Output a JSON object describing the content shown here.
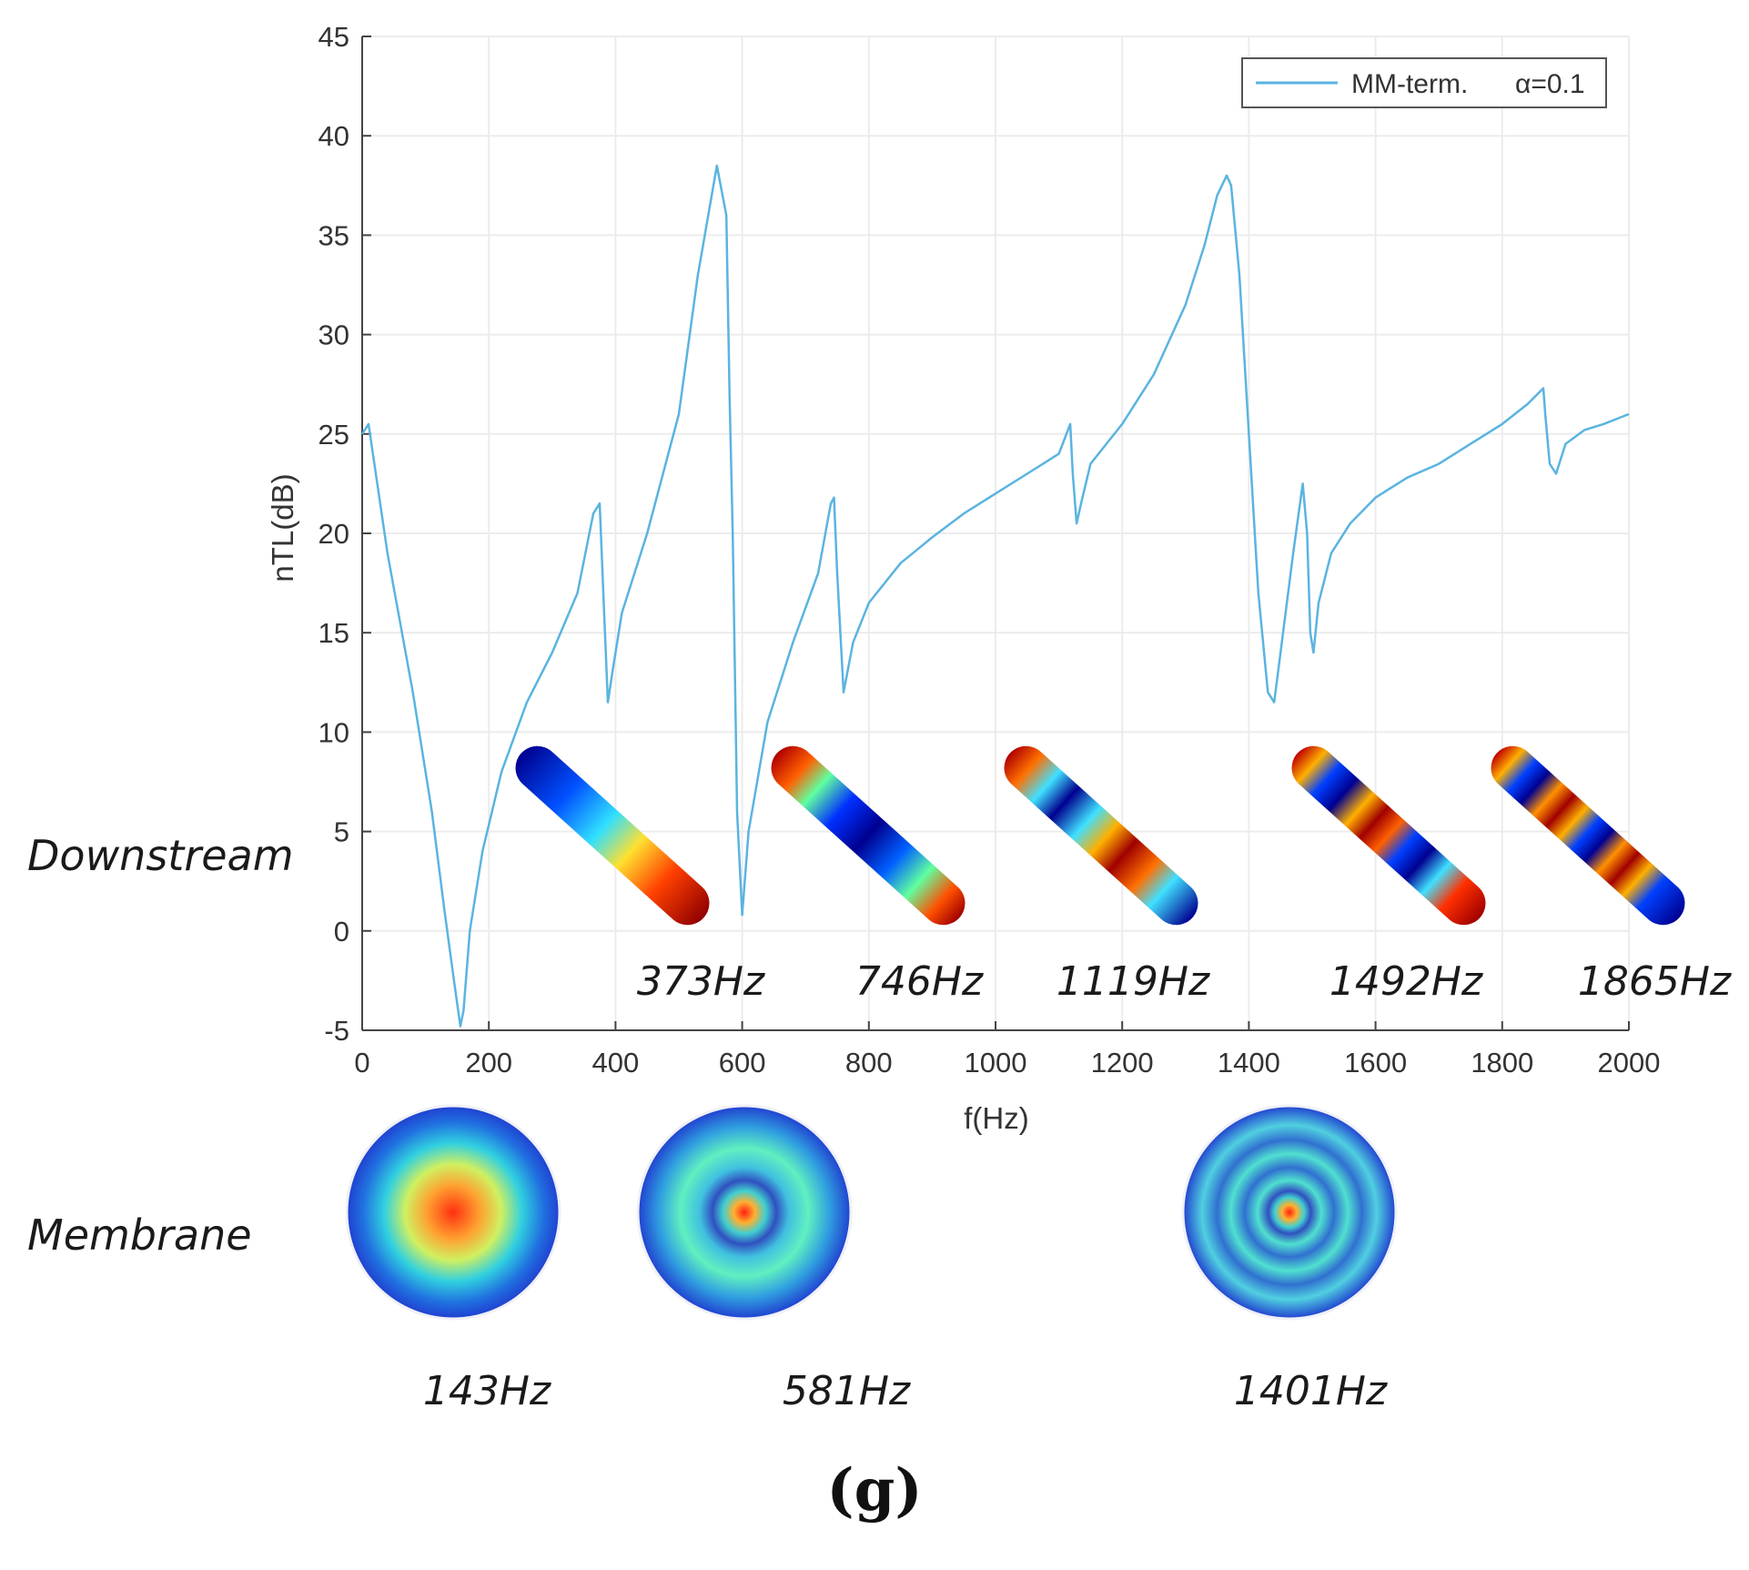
{
  "chart_data": {
    "type": "line",
    "title": "",
    "xlabel": "f(Hz)",
    "ylabel": "nTL(dB)",
    "xlim": [
      0,
      2000
    ],
    "ylim": [
      -5,
      45
    ],
    "xticks": [
      0,
      200,
      400,
      600,
      800,
      1000,
      1200,
      1400,
      1600,
      1800,
      2000
    ],
    "yticks": [
      -5,
      0,
      5,
      10,
      15,
      20,
      25,
      30,
      35,
      40,
      45
    ],
    "grid": true,
    "legend": {
      "placement": "top-right"
    },
    "series": [
      {
        "name": "MM-term.",
        "legend_param": "α=0.1",
        "color": "#5ab4e0",
        "x": [
          0,
          10,
          40,
          80,
          110,
          130,
          145,
          155,
          160,
          170,
          190,
          220,
          260,
          300,
          340,
          365,
          375,
          382,
          388,
          395,
          410,
          450,
          500,
          530,
          560,
          575,
          580,
          585,
          592,
          600,
          610,
          640,
          680,
          720,
          740,
          745,
          750,
          760,
          775,
          800,
          850,
          900,
          950,
          1000,
          1050,
          1100,
          1118,
          1122,
          1128,
          1135,
          1150,
          1200,
          1250,
          1300,
          1330,
          1350,
          1365,
          1372,
          1385,
          1400,
          1415,
          1430,
          1440,
          1450,
          1470,
          1485,
          1492,
          1497,
          1502,
          1510,
          1530,
          1560,
          1600,
          1650,
          1700,
          1750,
          1800,
          1840,
          1865,
          1868,
          1875,
          1885,
          1900,
          1930,
          1960,
          2000
        ],
        "y": [
          25.0,
          25.5,
          19.0,
          12.0,
          6.0,
          1.0,
          -2.5,
          -4.8,
          -4.0,
          0.0,
          4.0,
          8.0,
          11.5,
          14.0,
          17.0,
          21.0,
          21.5,
          16.0,
          11.5,
          13.0,
          16.0,
          20.0,
          26.0,
          33.0,
          38.5,
          36.0,
          27.0,
          20.0,
          6.0,
          0.8,
          5.0,
          10.5,
          14.5,
          18.0,
          21.5,
          21.8,
          18.0,
          12.0,
          14.5,
          16.5,
          18.5,
          19.8,
          21.0,
          22.0,
          23.0,
          24.0,
          25.5,
          23.0,
          20.5,
          21.5,
          23.5,
          25.5,
          28.0,
          31.5,
          34.5,
          37.0,
          38.0,
          37.5,
          33.0,
          25.0,
          17.0,
          12.0,
          11.5,
          14.0,
          19.0,
          22.5,
          20.0,
          15.0,
          14.0,
          16.5,
          19.0,
          20.5,
          21.8,
          22.8,
          23.5,
          24.5,
          25.5,
          26.5,
          27.3,
          26.0,
          23.5,
          23.0,
          24.5,
          25.2,
          25.5,
          26.0
        ]
      }
    ],
    "annotations": {
      "downstream_label": "Downstream",
      "membrane_label": "Membrane",
      "downstream_modes": [
        {
          "freq": 373,
          "label": "373Hz"
        },
        {
          "freq": 746,
          "label": "746Hz"
        },
        {
          "freq": 1119,
          "label": "1119Hz"
        },
        {
          "freq": 1492,
          "label": "1492Hz"
        },
        {
          "freq": 1865,
          "label": "1865Hz"
        }
      ],
      "membrane_modes": [
        {
          "freq": 143,
          "label": "143Hz"
        },
        {
          "freq": 581,
          "label": "581Hz"
        },
        {
          "freq": 1401,
          "label": "1401Hz"
        }
      ]
    },
    "caption": "(g)"
  }
}
